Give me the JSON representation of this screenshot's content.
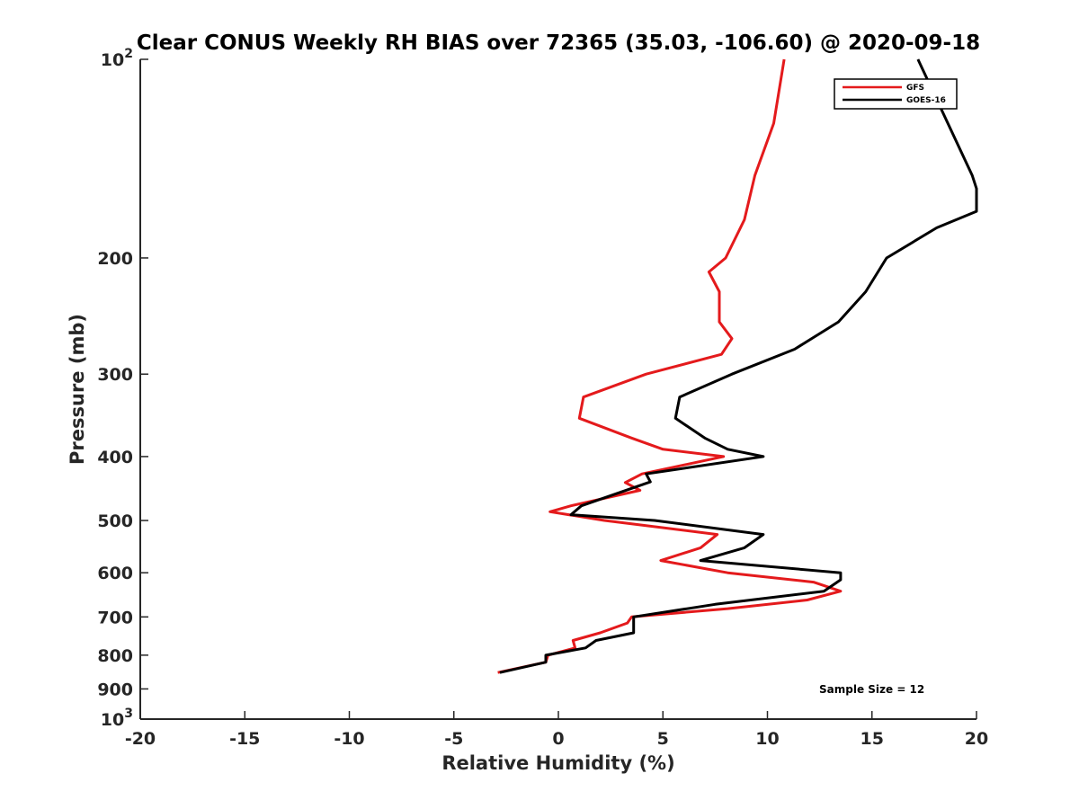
{
  "chart_data": {
    "type": "line",
    "title": "Clear CONUS Weekly RH BIAS over 72365 (35.03, -106.60) @ 2020-09-18",
    "xlabel": "Relative Humidity (%)",
    "ylabel": "Pressure (mb)",
    "xlim": [
      -20,
      20
    ],
    "ylim": [
      100,
      1000
    ],
    "y_scale": "log",
    "y_reversed": true,
    "grid": false,
    "legend_position": "top-right",
    "annotation": "Sample Size = 12",
    "x_ticks": [
      "-20",
      "-15",
      "-10",
      "-5",
      "0",
      "5",
      "10",
      "15",
      "20"
    ],
    "y_ticks": [
      {
        "value": 100,
        "base": "10",
        "exp": "2"
      },
      {
        "value": 200,
        "label": "200"
      },
      {
        "value": 300,
        "label": "300"
      },
      {
        "value": 400,
        "label": "400"
      },
      {
        "value": 500,
        "label": "500"
      },
      {
        "value": 600,
        "label": "600"
      },
      {
        "value": 700,
        "label": "700"
      },
      {
        "value": 800,
        "label": "800"
      },
      {
        "value": 900,
        "label": "900"
      },
      {
        "value": 1000,
        "base": "10",
        "exp": "3"
      }
    ],
    "series": [
      {
        "name": "GFS",
        "color": "#e41a1c",
        "points": [
          [
            10.8,
            100
          ],
          [
            10.3,
            125
          ],
          [
            9.4,
            150
          ],
          [
            8.9,
            175
          ],
          [
            8.0,
            200
          ],
          [
            7.2,
            210
          ],
          [
            7.7,
            225
          ],
          [
            7.7,
            250
          ],
          [
            8.3,
            265
          ],
          [
            7.8,
            280
          ],
          [
            4.2,
            300
          ],
          [
            1.2,
            325
          ],
          [
            1.0,
            350
          ],
          [
            3.5,
            375
          ],
          [
            5.0,
            390
          ],
          [
            7.9,
            400
          ],
          [
            4.0,
            425
          ],
          [
            3.2,
            438
          ],
          [
            3.9,
            450
          ],
          [
            0.6,
            475
          ],
          [
            -0.4,
            485
          ],
          [
            2.2,
            500
          ],
          [
            7.6,
            525
          ],
          [
            6.8,
            550
          ],
          [
            4.9,
            575
          ],
          [
            8.1,
            600
          ],
          [
            12.2,
            620
          ],
          [
            13.5,
            640
          ],
          [
            11.9,
            660
          ],
          [
            8.1,
            680
          ],
          [
            3.5,
            700
          ],
          [
            3.3,
            715
          ],
          [
            2.0,
            740
          ],
          [
            0.7,
            760
          ],
          [
            0.8,
            780
          ],
          [
            -0.5,
            800
          ],
          [
            -0.6,
            820
          ],
          [
            -2.9,
            850
          ]
        ]
      },
      {
        "name": "GOES-16",
        "color": "#000000",
        "points": [
          [
            17.2,
            100
          ],
          [
            19.8,
            150
          ],
          [
            20.0,
            157
          ],
          [
            20.0,
            170
          ],
          [
            18.1,
            180
          ],
          [
            15.7,
            200
          ],
          [
            14.7,
            225
          ],
          [
            13.4,
            250
          ],
          [
            11.3,
            275
          ],
          [
            8.3,
            300
          ],
          [
            5.8,
            325
          ],
          [
            5.6,
            350
          ],
          [
            7.0,
            375
          ],
          [
            8.1,
            390
          ],
          [
            9.8,
            400
          ],
          [
            4.2,
            425
          ],
          [
            4.4,
            437
          ],
          [
            1.1,
            475
          ],
          [
            0.6,
            490
          ],
          [
            4.6,
            500
          ],
          [
            9.8,
            525
          ],
          [
            8.9,
            550
          ],
          [
            6.8,
            575
          ],
          [
            13.5,
            600
          ],
          [
            13.5,
            615
          ],
          [
            12.7,
            640
          ],
          [
            7.5,
            670
          ],
          [
            3.6,
            700
          ],
          [
            3.6,
            720
          ],
          [
            3.6,
            740
          ],
          [
            1.8,
            760
          ],
          [
            1.3,
            780
          ],
          [
            -0.6,
            800
          ],
          [
            -0.6,
            820
          ],
          [
            -2.8,
            850
          ]
        ]
      }
    ]
  }
}
